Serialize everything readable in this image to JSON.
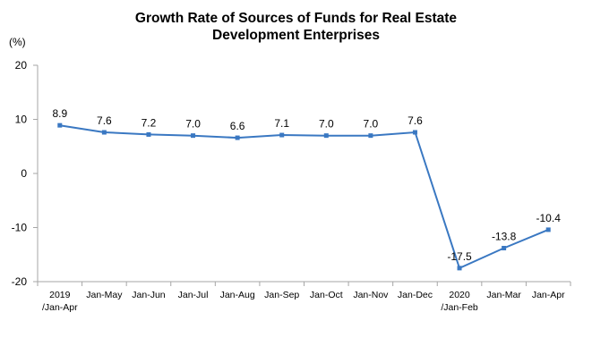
{
  "chart_data": {
    "type": "line",
    "title_lines": [
      "Growth Rate of Sources of Funds for Real Estate",
      "Development Enterprises"
    ],
    "unit_label": "(%)",
    "categories": [
      [
        "2019",
        "/Jan-Apr"
      ],
      [
        "Jan-May"
      ],
      [
        "Jan-Jun"
      ],
      [
        "Jan-Jul"
      ],
      [
        "Jan-Aug"
      ],
      [
        "Jan-Sep"
      ],
      [
        "Jan-Oct"
      ],
      [
        "Jan-Nov"
      ],
      [
        "Jan-Dec"
      ],
      [
        "2020",
        "/Jan-Feb"
      ],
      [
        "Jan-Mar"
      ],
      [
        "Jan-Apr"
      ]
    ],
    "values": [
      8.9,
      7.6,
      7.2,
      7.0,
      6.6,
      7.1,
      7.0,
      7.0,
      7.6,
      -17.5,
      -13.8,
      -10.4
    ],
    "data_labels": [
      "8.9",
      "7.6",
      "7.2",
      "7.0",
      "6.6",
      "7.1",
      "7.0",
      "7.0",
      "7.6",
      "-17.5",
      "-13.8",
      "-10.4"
    ],
    "ylim": [
      -20,
      20
    ],
    "yticks": [
      20,
      10,
      0,
      -10,
      -20
    ],
    "legend": "none",
    "grid": false,
    "line_color": "#3a78c2",
    "axis_color": "#a6a6a6"
  }
}
